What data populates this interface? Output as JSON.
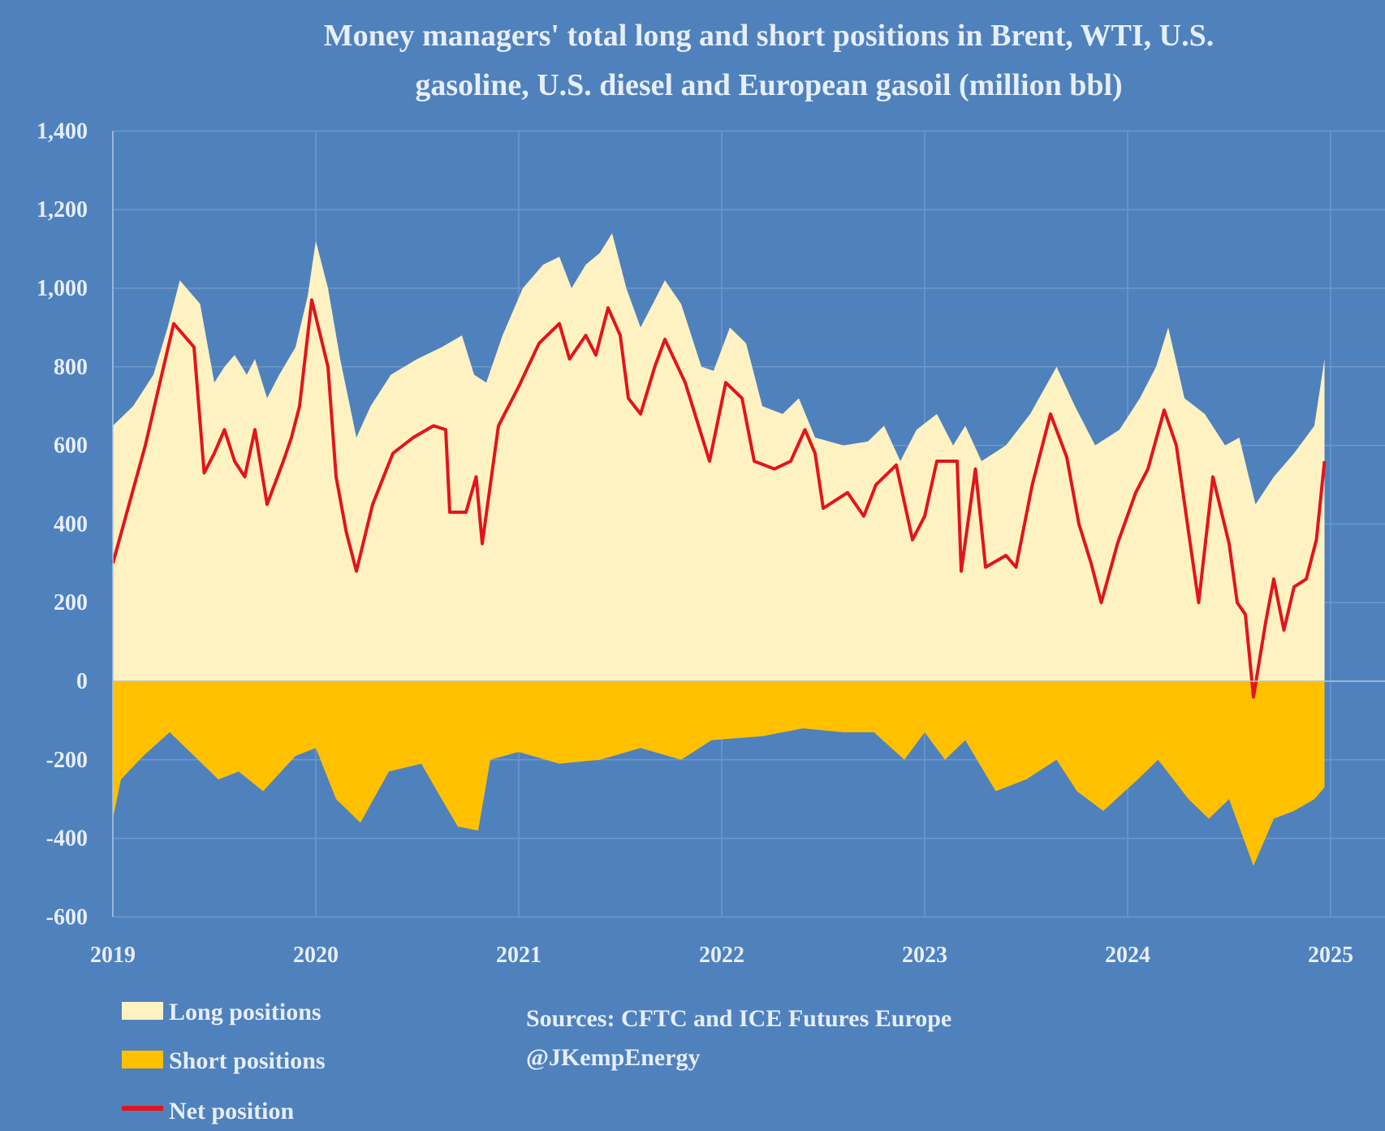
{
  "chart_data": {
    "type": "area",
    "title": "Money managers' total long and short positions in Brent, WTI, U.S. gasoline, U.S. diesel and European gasoil  (million bbl)",
    "title_lines": [
      "Money managers' total long and short positions in Brent, WTI, U.S.",
      "gasoline, U.S. diesel and European gasoil  (million bbl)"
    ],
    "xlabel": "",
    "ylabel": "",
    "xlim": [
      2019,
      2025.3
    ],
    "ylim": [
      -600,
      1400
    ],
    "y_ticks": [
      "1,400",
      "1,200",
      "1,000",
      "800",
      "600",
      "400",
      "200",
      "0",
      "-200",
      "-400",
      "-600"
    ],
    "y_tick_values": [
      1400,
      1200,
      1000,
      800,
      600,
      400,
      200,
      0,
      -200,
      -400,
      -600
    ],
    "x_ticks": [
      "2019",
      "2020",
      "2021",
      "2022",
      "2023",
      "2024",
      "2025"
    ],
    "grid": true,
    "legend_placement": "bottom-left",
    "colors": {
      "background": "#4f81bd",
      "long": "#fff2c2",
      "short": "#ffc000",
      "net": "#e3141b",
      "text": "#e6eef8"
    },
    "series": [
      {
        "name": "Long positions",
        "kind": "area",
        "points": [
          [
            2019.0,
            650
          ],
          [
            2019.1,
            700
          ],
          [
            2019.2,
            780
          ],
          [
            2019.27,
            900
          ],
          [
            2019.33,
            1020
          ],
          [
            2019.43,
            960
          ],
          [
            2019.5,
            760
          ],
          [
            2019.55,
            800
          ],
          [
            2019.6,
            830
          ],
          [
            2019.66,
            780
          ],
          [
            2019.7,
            820
          ],
          [
            2019.76,
            720
          ],
          [
            2019.82,
            780
          ],
          [
            2019.9,
            850
          ],
          [
            2019.96,
            980
          ],
          [
            2020.0,
            1120
          ],
          [
            2020.06,
            1000
          ],
          [
            2020.12,
            820
          ],
          [
            2020.2,
            620
          ],
          [
            2020.27,
            700
          ],
          [
            2020.37,
            780
          ],
          [
            2020.5,
            820
          ],
          [
            2020.62,
            850
          ],
          [
            2020.72,
            880
          ],
          [
            2020.78,
            780
          ],
          [
            2020.84,
            760
          ],
          [
            2020.92,
            880
          ],
          [
            2021.02,
            1000
          ],
          [
            2021.12,
            1060
          ],
          [
            2021.2,
            1080
          ],
          [
            2021.26,
            1000
          ],
          [
            2021.33,
            1060
          ],
          [
            2021.4,
            1090
          ],
          [
            2021.46,
            1140
          ],
          [
            2021.53,
            1000
          ],
          [
            2021.6,
            900
          ],
          [
            2021.66,
            960
          ],
          [
            2021.72,
            1020
          ],
          [
            2021.8,
            960
          ],
          [
            2021.9,
            800
          ],
          [
            2021.96,
            790
          ],
          [
            2022.04,
            900
          ],
          [
            2022.12,
            860
          ],
          [
            2022.2,
            700
          ],
          [
            2022.3,
            680
          ],
          [
            2022.38,
            720
          ],
          [
            2022.46,
            620
          ],
          [
            2022.6,
            600
          ],
          [
            2022.72,
            610
          ],
          [
            2022.8,
            650
          ],
          [
            2022.88,
            560
          ],
          [
            2022.96,
            640
          ],
          [
            2023.06,
            680
          ],
          [
            2023.14,
            600
          ],
          [
            2023.2,
            650
          ],
          [
            2023.28,
            560
          ],
          [
            2023.4,
            600
          ],
          [
            2023.52,
            680
          ],
          [
            2023.65,
            800
          ],
          [
            2023.74,
            700
          ],
          [
            2023.84,
            600
          ],
          [
            2023.96,
            640
          ],
          [
            2024.06,
            720
          ],
          [
            2024.14,
            800
          ],
          [
            2024.2,
            900
          ],
          [
            2024.28,
            720
          ],
          [
            2024.38,
            680
          ],
          [
            2024.48,
            600
          ],
          [
            2024.55,
            620
          ],
          [
            2024.63,
            450
          ],
          [
            2024.72,
            520
          ],
          [
            2024.82,
            580
          ],
          [
            2024.92,
            650
          ],
          [
            2024.97,
            820
          ]
        ]
      },
      {
        "name": "Short positions",
        "kind": "area",
        "points": [
          [
            2019.0,
            -350
          ],
          [
            2019.04,
            -250
          ],
          [
            2019.15,
            -190
          ],
          [
            2019.28,
            -130
          ],
          [
            2019.42,
            -200
          ],
          [
            2019.52,
            -250
          ],
          [
            2019.62,
            -230
          ],
          [
            2019.74,
            -280
          ],
          [
            2019.9,
            -190
          ],
          [
            2020.0,
            -170
          ],
          [
            2020.1,
            -300
          ],
          [
            2020.22,
            -360
          ],
          [
            2020.36,
            -230
          ],
          [
            2020.52,
            -210
          ],
          [
            2020.62,
            -300
          ],
          [
            2020.7,
            -370
          ],
          [
            2020.8,
            -380
          ],
          [
            2020.86,
            -200
          ],
          [
            2021.0,
            -180
          ],
          [
            2021.2,
            -210
          ],
          [
            2021.4,
            -200
          ],
          [
            2021.6,
            -170
          ],
          [
            2021.8,
            -200
          ],
          [
            2021.95,
            -150
          ],
          [
            2022.2,
            -140
          ],
          [
            2022.4,
            -120
          ],
          [
            2022.6,
            -130
          ],
          [
            2022.75,
            -130
          ],
          [
            2022.9,
            -200
          ],
          [
            2023.0,
            -130
          ],
          [
            2023.1,
            -200
          ],
          [
            2023.2,
            -150
          ],
          [
            2023.35,
            -280
          ],
          [
            2023.5,
            -250
          ],
          [
            2023.65,
            -200
          ],
          [
            2023.75,
            -280
          ],
          [
            2023.88,
            -330
          ],
          [
            2024.05,
            -250
          ],
          [
            2024.15,
            -200
          ],
          [
            2024.3,
            -300
          ],
          [
            2024.4,
            -350
          ],
          [
            2024.5,
            -300
          ],
          [
            2024.62,
            -470
          ],
          [
            2024.72,
            -350
          ],
          [
            2024.82,
            -330
          ],
          [
            2024.92,
            -300
          ],
          [
            2024.97,
            -270
          ]
        ]
      },
      {
        "name": "Net position",
        "kind": "line",
        "points": [
          [
            2019.0,
            300
          ],
          [
            2019.08,
            450
          ],
          [
            2019.16,
            600
          ],
          [
            2019.25,
            800
          ],
          [
            2019.3,
            910
          ],
          [
            2019.4,
            850
          ],
          [
            2019.45,
            530
          ],
          [
            2019.5,
            580
          ],
          [
            2019.55,
            640
          ],
          [
            2019.6,
            560
          ],
          [
            2019.65,
            520
          ],
          [
            2019.7,
            640
          ],
          [
            2019.76,
            450
          ],
          [
            2019.84,
            560
          ],
          [
            2019.88,
            620
          ],
          [
            2019.92,
            700
          ],
          [
            2019.98,
            970
          ],
          [
            2020.06,
            800
          ],
          [
            2020.1,
            520
          ],
          [
            2020.15,
            380
          ],
          [
            2020.2,
            280
          ],
          [
            2020.28,
            450
          ],
          [
            2020.38,
            580
          ],
          [
            2020.48,
            620
          ],
          [
            2020.58,
            650
          ],
          [
            2020.64,
            640
          ],
          [
            2020.66,
            430
          ],
          [
            2020.74,
            430
          ],
          [
            2020.79,
            520
          ],
          [
            2020.82,
            350
          ],
          [
            2020.9,
            650
          ],
          [
            2021.0,
            750
          ],
          [
            2021.1,
            860
          ],
          [
            2021.2,
            910
          ],
          [
            2021.25,
            820
          ],
          [
            2021.33,
            880
          ],
          [
            2021.38,
            830
          ],
          [
            2021.44,
            950
          ],
          [
            2021.5,
            880
          ],
          [
            2021.54,
            720
          ],
          [
            2021.6,
            680
          ],
          [
            2021.67,
            800
          ],
          [
            2021.72,
            870
          ],
          [
            2021.82,
            760
          ],
          [
            2021.94,
            560
          ],
          [
            2022.02,
            760
          ],
          [
            2022.1,
            720
          ],
          [
            2022.16,
            560
          ],
          [
            2022.26,
            540
          ],
          [
            2022.34,
            560
          ],
          [
            2022.41,
            640
          ],
          [
            2022.46,
            580
          ],
          [
            2022.5,
            440
          ],
          [
            2022.62,
            480
          ],
          [
            2022.7,
            420
          ],
          [
            2022.76,
            500
          ],
          [
            2022.86,
            550
          ],
          [
            2022.94,
            360
          ],
          [
            2023.0,
            420
          ],
          [
            2023.06,
            560
          ],
          [
            2023.16,
            560
          ],
          [
            2023.18,
            280
          ],
          [
            2023.25,
            540
          ],
          [
            2023.3,
            290
          ],
          [
            2023.4,
            320
          ],
          [
            2023.45,
            290
          ],
          [
            2023.53,
            500
          ],
          [
            2023.62,
            680
          ],
          [
            2023.7,
            570
          ],
          [
            2023.76,
            400
          ],
          [
            2023.82,
            300
          ],
          [
            2023.87,
            200
          ],
          [
            2023.95,
            350
          ],
          [
            2024.04,
            480
          ],
          [
            2024.1,
            540
          ],
          [
            2024.18,
            690
          ],
          [
            2024.24,
            600
          ],
          [
            2024.3,
            380
          ],
          [
            2024.35,
            200
          ],
          [
            2024.42,
            520
          ],
          [
            2024.5,
            350
          ],
          [
            2024.54,
            200
          ],
          [
            2024.58,
            170
          ],
          [
            2024.62,
            -40
          ],
          [
            2024.68,
            150
          ],
          [
            2024.72,
            260
          ],
          [
            2024.77,
            130
          ],
          [
            2024.82,
            240
          ],
          [
            2024.88,
            260
          ],
          [
            2024.93,
            360
          ],
          [
            2024.97,
            560
          ]
        ]
      }
    ],
    "legend": [
      "Long positions",
      "Short positions",
      "Net position"
    ],
    "annotations": [
      "Sources: CFTC and ICE Futures Europe",
      "@JKempEnergy"
    ]
  }
}
